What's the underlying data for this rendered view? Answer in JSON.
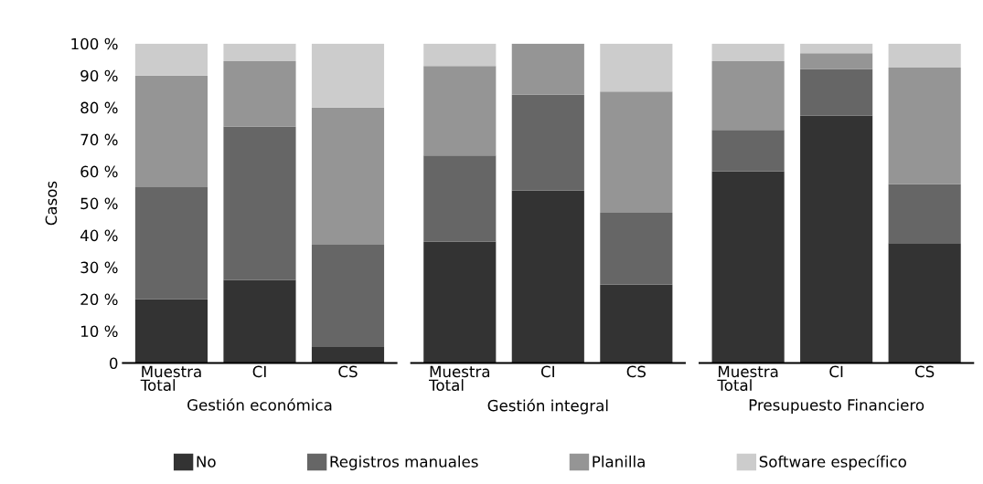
{
  "chart_data": [
    {
      "type": "bar",
      "stacked": true,
      "xlabel": "Gestión económica",
      "ylabel": "Casos",
      "categories": [
        "Muestra\nTotal",
        "CI",
        "CS"
      ],
      "ylim": [
        0,
        100
      ],
      "yticks": [
        {
          "value": 0,
          "label": "0"
        },
        {
          "value": 10,
          "label": "10 %"
        },
        {
          "value": 20,
          "label": "20 %"
        },
        {
          "value": 30,
          "label": "30 %"
        },
        {
          "value": 40,
          "label": "40 %"
        },
        {
          "value": 50,
          "label": "50 %"
        },
        {
          "value": 60,
          "label": "60 %"
        },
        {
          "value": 70,
          "label": "70 %"
        },
        {
          "value": 80,
          "label": "80 %"
        },
        {
          "value": 90,
          "label": "90 %"
        },
        {
          "value": 100,
          "label": "100 %"
        }
      ],
      "legend": "bottom",
      "grid": false,
      "series": [
        {
          "name": "No",
          "color": "#333333",
          "values": [
            20,
            26,
            5
          ]
        },
        {
          "name": "Registros manuales",
          "color": "#666666",
          "values": [
            35,
            48,
            32
          ]
        },
        {
          "name": "Planilla",
          "color": "#959595",
          "values": [
            35,
            20.5,
            43
          ]
        },
        {
          "name": "Software específico",
          "color": "#cccccc",
          "values": [
            10,
            5.5,
            20
          ]
        }
      ]
    },
    {
      "type": "bar",
      "stacked": true,
      "xlabel": "Gestión integral",
      "categories": [
        "Muestra\nTotal",
        "CI",
        "CS"
      ],
      "ylim": [
        0,
        100
      ],
      "tick_labels": "x",
      "grid": false,
      "series": [
        {
          "color": "#333333",
          "values": [
            38,
            54,
            24.5
          ]
        },
        {
          "color": "#666666",
          "values": [
            27,
            30,
            22.5
          ]
        },
        {
          "color": "#959595",
          "values": [
            28,
            16,
            38
          ]
        },
        {
          "color": "#cccccc",
          "values": [
            7,
            0,
            15
          ]
        }
      ]
    },
    {
      "type": "bar",
      "stacked": true,
      "xlabel": "Presupuesto Financiero",
      "categories": [
        "Muestra\nTotal",
        "CI",
        "CS"
      ],
      "ylim": [
        0,
        100
      ],
      "tick_labels": "x",
      "grid": false,
      "series": [
        {
          "color": "#333333",
          "values": [
            60,
            77.5,
            37.5
          ]
        },
        {
          "color": "#666666",
          "values": [
            13,
            14.5,
            18.5
          ]
        },
        {
          "color": "#959595",
          "values": [
            21.5,
            5,
            36.5
          ]
        },
        {
          "color": "#cccccc",
          "values": [
            5.5,
            3,
            7.5
          ]
        }
      ]
    }
  ]
}
